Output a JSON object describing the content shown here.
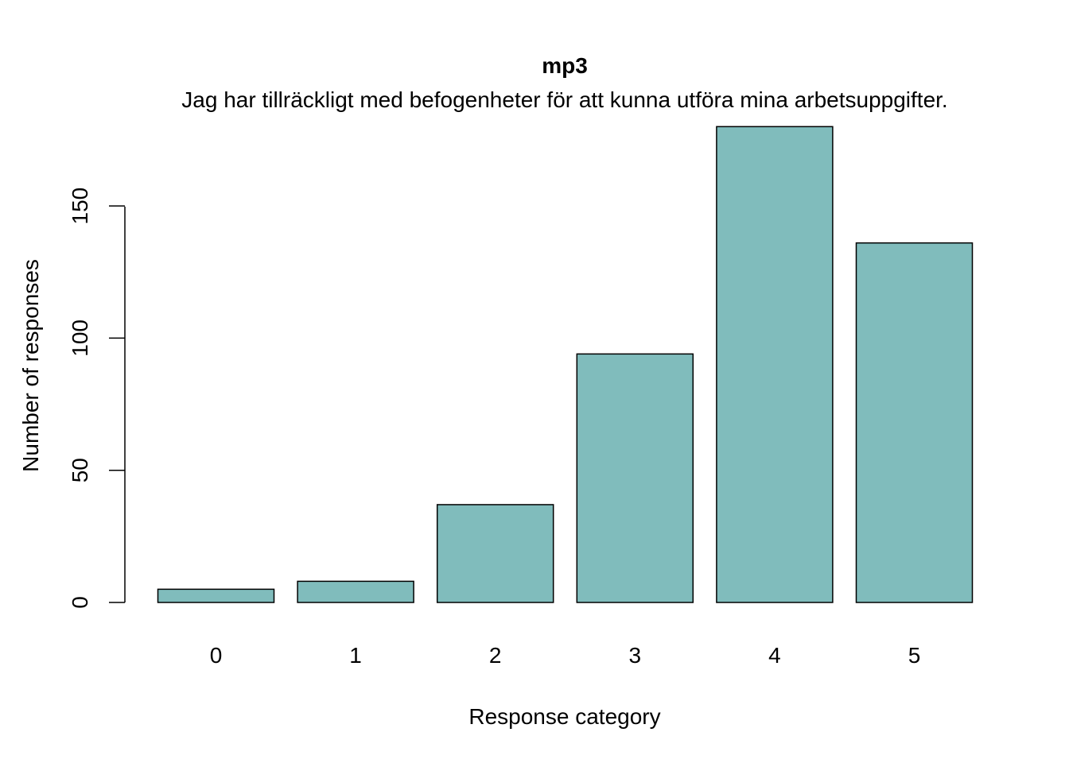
{
  "chart_data": {
    "type": "bar",
    "title": "mp3",
    "subtitle": "Jag har tillräckligt med befogenheter för att kunna utföra mina arbetsuppgifter.",
    "xlabel": "Response category",
    "ylabel": "Number of responses",
    "categories": [
      "0",
      "1",
      "2",
      "3",
      "4",
      "5"
    ],
    "values": [
      5,
      8,
      37,
      94,
      180,
      136
    ],
    "ylim": [
      0,
      180
    ],
    "yticks": [
      0,
      50,
      100,
      150
    ],
    "bar_color": "#80BCBC",
    "grid": false,
    "legend": "none"
  }
}
